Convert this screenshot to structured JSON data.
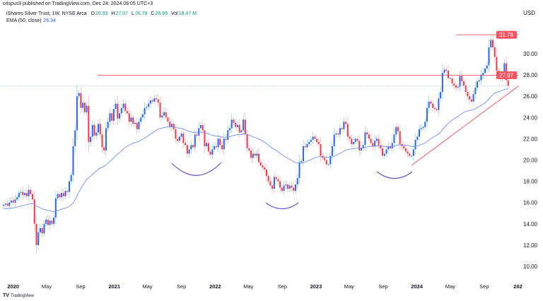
{
  "header": {
    "published": "crispus9 published on TradingView.com, Dec 24, 2024 08:05 UTC+3"
  },
  "legend": {
    "symbol": "iShares Silver Trust, 1W, NYSE Arca",
    "o_label": "O",
    "o": "26.93",
    "h_label": "H",
    "h": "27.07",
    "l_label": "L",
    "l": "26.79",
    "c_label": "C",
    "c": "26.99",
    "vol_label": "Vol",
    "vol": "18.47 M",
    "ema_label": "EMA (50, close)",
    "ema": "26.34"
  },
  "footer": {
    "logo": "TradingView"
  },
  "colors": {
    "up": "#2962ff",
    "down": "#f23645",
    "ema": "#6f8ff7",
    "level": "#f7525f",
    "trend": "#f7525f",
    "arc": "#6a4fc7",
    "last_price": "#9fb2f0"
  },
  "chart_data": {
    "type": "candlestick",
    "interval": "1W",
    "currency": "USD",
    "first_week": "2019-12-02",
    "ylim": [
      9,
      32.5
    ],
    "y_ticks": [
      "10.00",
      "12.00",
      "14.00",
      "16.00",
      "18.00",
      "20.00",
      "22.00",
      "24.00",
      "26.00",
      "28.00",
      "30.00"
    ],
    "x_ticks": [
      {
        "label": "2020",
        "date": "2020-01-01",
        "year": true
      },
      {
        "label": "May",
        "date": "2020-05-01"
      },
      {
        "label": "Sep",
        "date": "2020-09-01"
      },
      {
        "label": "2021",
        "date": "2021-01-01",
        "year": true
      },
      {
        "label": "May",
        "date": "2021-05-01"
      },
      {
        "label": "Sep",
        "date": "2021-09-01"
      },
      {
        "label": "2022",
        "date": "2022-01-01",
        "year": true
      },
      {
        "label": "May",
        "date": "2022-05-01"
      },
      {
        "label": "Sep",
        "date": "2022-09-01"
      },
      {
        "label": "2023",
        "date": "2023-01-01",
        "year": true
      },
      {
        "label": "May",
        "date": "2023-05-01"
      },
      {
        "label": "Sep",
        "date": "2023-09-01"
      },
      {
        "label": "2024",
        "date": "2024-01-01",
        "year": true
      },
      {
        "label": "May",
        "date": "2024-05-01"
      },
      {
        "label": "Sep",
        "date": "2024-09-01"
      },
      {
        "label": "202",
        "date": "2025-01-01",
        "year": true
      }
    ],
    "weekly_close": [
      15.8,
      15.9,
      15.7,
      16.0,
      16.2,
      16.0,
      16.3,
      16.5,
      16.9,
      17.0,
      16.7,
      16.9,
      16.6,
      17.2,
      16.8,
      16.3,
      14.0,
      12.0,
      13.2,
      13.6,
      13.1,
      14.0,
      14.4,
      13.9,
      14.3,
      14.0,
      14.6,
      16.4,
      16.8,
      16.5,
      16.9,
      16.6,
      17.1,
      17.0,
      18.0,
      18.6,
      21.3,
      22.8,
      26.0,
      26.3,
      24.9,
      25.4,
      24.5,
      25.1,
      21.7,
      22.2,
      23.3,
      22.3,
      22.6,
      23.4,
      22.4,
      21.2,
      20.9,
      23.0,
      23.6,
      24.4,
      23.7,
      24.8,
      25.3,
      23.9,
      24.4,
      24.9,
      25.3,
      24.6,
      24.4,
      23.6,
      24.0,
      23.4,
      23.5,
      22.9,
      23.6,
      24.0,
      24.3,
      24.9,
      25.0,
      25.3,
      25.6,
      25.5,
      25.8,
      25.7,
      25.4,
      24.0,
      24.2,
      24.5,
      24.0,
      23.6,
      23.1,
      23.4,
      22.9,
      22.0,
      21.8,
      22.2,
      22.5,
      21.6,
      21.4,
      20.6,
      21.0,
      21.4,
      21.2,
      22.4,
      22.3,
      23.0,
      23.3,
      22.8,
      21.3,
      21.6,
      20.8,
      20.5,
      21.0,
      21.3,
      21.2,
      22.0,
      21.4,
      21.0,
      22.0,
      21.9,
      22.8,
      23.0,
      23.8,
      23.5,
      23.1,
      23.3,
      22.6,
      22.8,
      23.8,
      22.4,
      21.1,
      20.9,
      20.2,
      20.6,
      20.4,
      20.6,
      19.8,
      19.5,
      19.3,
      19.1,
      18.5,
      18.0,
      17.6,
      17.3,
      18.4,
      18.2,
      18.0,
      17.4,
      17.1,
      17.6,
      17.7,
      17.3,
      17.6,
      17.4,
      17.1,
      17.7,
      18.3,
      19.8,
      19.9,
      21.3,
      21.2,
      21.5,
      21.7,
      21.9,
      22.2,
      22.0,
      21.7,
      21.5,
      20.4,
      20.2,
      20.0,
      19.6,
      19.6,
      20.4,
      21.3,
      22.4,
      22.5,
      22.4,
      23.0,
      22.9,
      23.6,
      23.4,
      22.2,
      22.0,
      21.5,
      21.7,
      22.0,
      21.8,
      20.9,
      21.1,
      21.4,
      22.6,
      22.4,
      22.0,
      21.6,
      21.3,
      21.8,
      22.0,
      21.4,
      21.1,
      20.4,
      20.6,
      21.0,
      21.3,
      21.1,
      21.6,
      22.4,
      23.1,
      22.7,
      21.5,
      21.3,
      21.1,
      20.8,
      20.6,
      20.4,
      20.4,
      21.0,
      21.9,
      22.2,
      22.9,
      23.0,
      23.1,
      23.6,
      24.9,
      25.5,
      25.3,
      24.9,
      24.8,
      24.7,
      25.8,
      26.4,
      28.2,
      28.5,
      28.4,
      27.7,
      27.7,
      27.2,
      27.0,
      26.8,
      26.9,
      27.9,
      27.4,
      27.0,
      26.4,
      26.0,
      25.7,
      25.5,
      26.2,
      26.8,
      27.4,
      27.5,
      28.0,
      28.2,
      28.6,
      28.9,
      30.6,
      31.3,
      30.6,
      29.7,
      28.4,
      28.2,
      27.7,
      27.9,
      29.1,
      27.5,
      26.99
    ],
    "overlays": {
      "ema_period": 50,
      "levels": [
        {
          "label": "31.78",
          "value": 31.78
        },
        {
          "label": "27.97",
          "value": 27.97
        }
      ],
      "last_price": 26.99
    },
    "grid": false
  }
}
